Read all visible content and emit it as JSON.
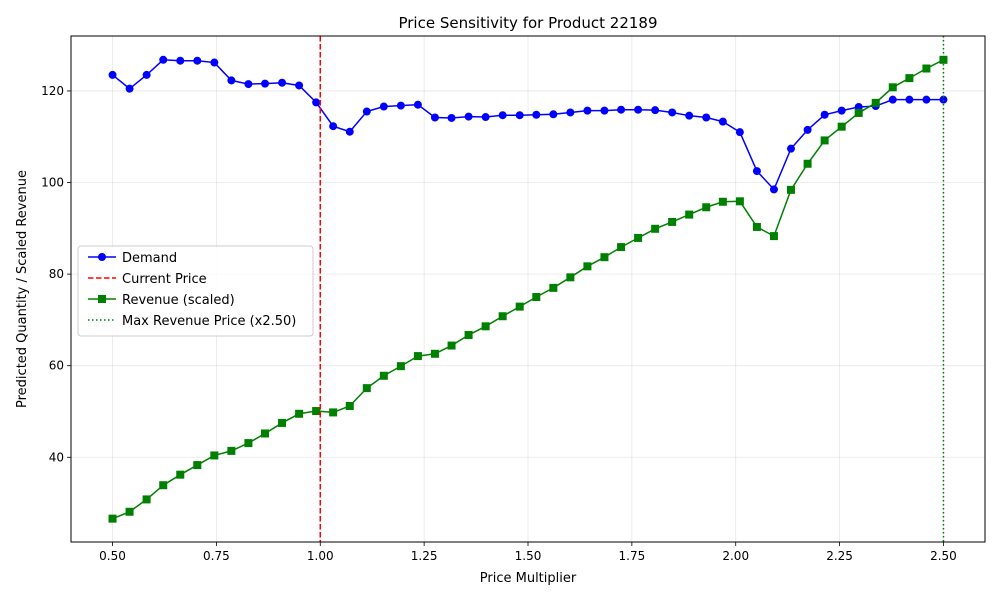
{
  "chart_data": {
    "type": "line",
    "title": "Price Sensitivity for Product 22189",
    "xlabel": "Price Multiplier",
    "ylabel": "Predicted Quantity / Scaled Revenue",
    "xlim": [
      0.4,
      2.6
    ],
    "ylim": [
      21.5,
      132
    ],
    "xticks": [
      0.5,
      0.75,
      1.0,
      1.25,
      1.5,
      1.75,
      2.0,
      2.25,
      2.5
    ],
    "xtick_labels": [
      "0.50",
      "0.75",
      "1.00",
      "1.25",
      "1.50",
      "1.75",
      "2.00",
      "2.25",
      "2.50"
    ],
    "yticks": [
      40,
      60,
      80,
      100,
      120
    ],
    "ytick_labels": [
      "40",
      "60",
      "80",
      "100",
      "120"
    ],
    "grid": true,
    "legend_position": "center-left",
    "x": [
      0.5,
      0.541,
      0.582,
      0.622,
      0.663,
      0.704,
      0.745,
      0.786,
      0.827,
      0.867,
      0.908,
      0.949,
      0.99,
      1.031,
      1.071,
      1.112,
      1.153,
      1.194,
      1.235,
      1.276,
      1.316,
      1.357,
      1.398,
      1.439,
      1.48,
      1.52,
      1.561,
      1.602,
      1.643,
      1.684,
      1.724,
      1.765,
      1.806,
      1.847,
      1.888,
      1.929,
      1.969,
      2.01,
      2.051,
      2.092,
      2.133,
      2.173,
      2.214,
      2.255,
      2.296,
      2.337,
      2.378,
      2.418,
      2.459,
      2.5
    ],
    "series": [
      {
        "name": "Demand",
        "color": "#0000ff",
        "marker": "circle",
        "linestyle": "solid",
        "values": [
          123.5,
          120.5,
          123.5,
          126.8,
          126.6,
          126.6,
          126.2,
          122.3,
          121.5,
          121.6,
          121.8,
          121.2,
          117.5,
          112.3,
          111.1,
          115.5,
          116.6,
          116.8,
          117.0,
          114.2,
          114.1,
          114.4,
          114.3,
          114.7,
          114.7,
          114.8,
          114.9,
          115.3,
          115.7,
          115.7,
          115.9,
          115.9,
          115.8,
          115.3,
          114.6,
          114.2,
          113.3,
          111.0,
          102.5,
          98.5,
          107.4,
          111.5,
          114.8,
          115.7,
          116.5,
          116.7,
          118.1,
          118.1,
          118.1,
          118.1
        ]
      },
      {
        "name": "Revenue (scaled)",
        "color": "#008000",
        "marker": "square",
        "linestyle": "solid",
        "values": [
          26.6,
          28.1,
          30.8,
          33.9,
          36.2,
          38.3,
          40.4,
          41.4,
          43.1,
          45.2,
          47.5,
          49.5,
          50.1,
          49.8,
          51.2,
          55.1,
          57.8,
          59.9,
          62.1,
          62.6,
          64.4,
          66.7,
          68.6,
          70.8,
          72.9,
          75.0,
          77.0,
          79.3,
          81.7,
          83.7,
          85.9,
          87.9,
          89.9,
          91.4,
          93.0,
          94.6,
          95.8,
          95.9,
          90.3,
          88.3,
          98.4,
          104.1,
          109.2,
          112.2,
          115.2,
          117.4,
          120.8,
          122.8,
          124.9,
          126.8
        ]
      }
    ],
    "vlines": [
      {
        "name": "Current Price",
        "x": 1.0,
        "color": "#ff0000",
        "linestyle": "dashed"
      },
      {
        "name": "Max Revenue Price (x2.50)",
        "x": 2.5,
        "color": "#008000",
        "linestyle": "dotted"
      }
    ],
    "legend": [
      "Demand",
      "Current Price",
      "Revenue (scaled)",
      "Max Revenue Price (x2.50)"
    ]
  }
}
